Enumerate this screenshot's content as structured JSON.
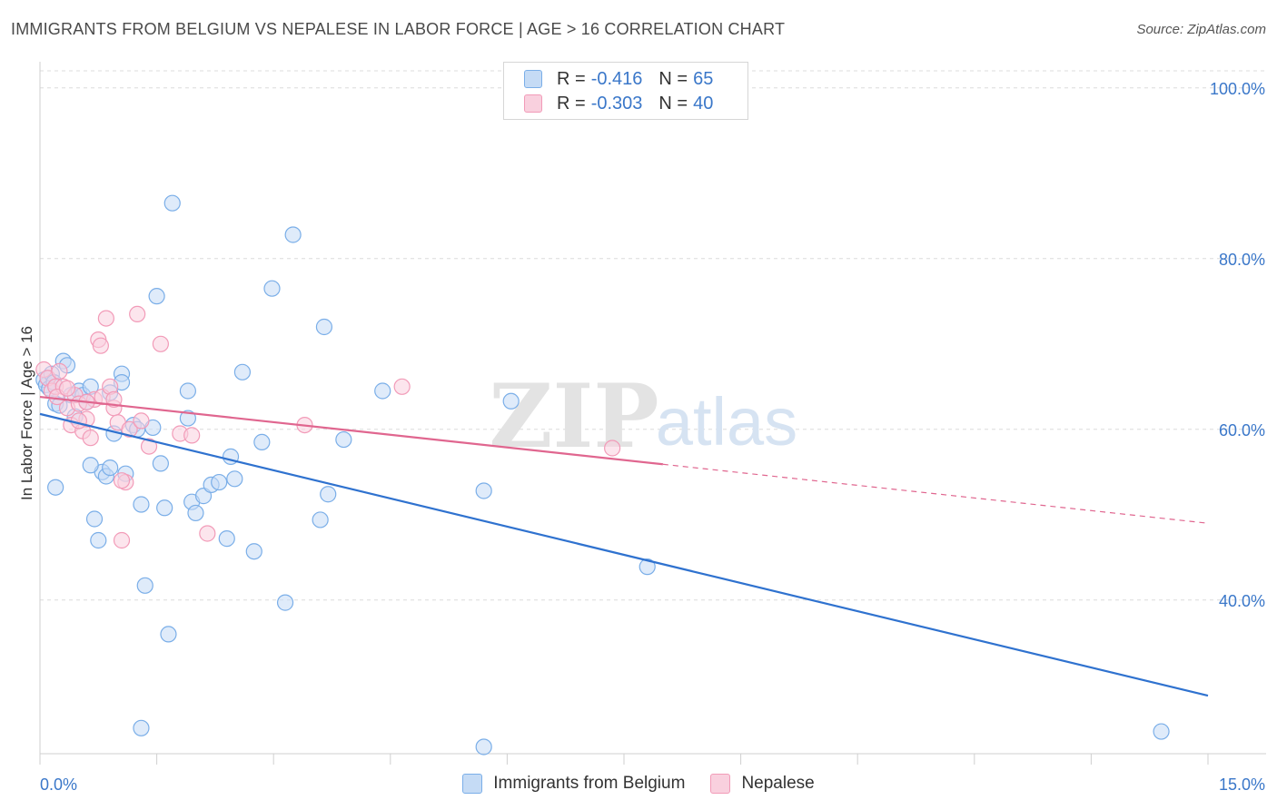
{
  "header": {
    "title": "IMMIGRANTS FROM BELGIUM VS NEPALESE IN LABOR FORCE | AGE > 16 CORRELATION CHART",
    "source": "Source: ZipAtlas.com"
  },
  "legend": {
    "rows": [
      {
        "r_label": "R =",
        "r_value": "-0.416",
        "n_label": "N =",
        "n_value": "65"
      },
      {
        "r_label": "R =",
        "r_value": "-0.303",
        "n_label": "N =",
        "n_value": "40"
      }
    ]
  },
  "watermark": {
    "zip": "ZIP",
    "atlas": "atlas"
  },
  "chart_data": {
    "type": "scatter",
    "title": "IMMIGRANTS FROM BELGIUM VS NEPALESE IN LABOR FORCE | AGE > 16 CORRELATION CHART",
    "xlabel": "",
    "ylabel": "In Labor Force | Age > 16",
    "xlim": [
      0,
      15
    ],
    "ylim": [
      22,
      102
    ],
    "x_tick_labels": [
      "0.0%",
      "15.0%"
    ],
    "y_ticks": [
      40,
      60,
      80,
      100
    ],
    "y_tick_labels": [
      "40.0%",
      "60.0%",
      "80.0%",
      "100.0%"
    ],
    "grid": true,
    "legend_position": "top-center",
    "series": [
      {
        "name": "Immigrants from Belgium",
        "color": "#7aaee8",
        "line_color": "#2f72cf",
        "trend": {
          "x": [
            0,
            15
          ],
          "y": [
            61.8,
            28.8
          ],
          "dashed_from": null
        },
        "points": [
          [
            0.05,
            65.8
          ],
          [
            0.08,
            65.2
          ],
          [
            0.1,
            66.0
          ],
          [
            0.12,
            64.8
          ],
          [
            0.15,
            66.5
          ],
          [
            0.18,
            65.5
          ],
          [
            0.2,
            63.0
          ],
          [
            0.25,
            62.8
          ],
          [
            0.3,
            68.0
          ],
          [
            0.35,
            67.5
          ],
          [
            0.4,
            64.0
          ],
          [
            0.45,
            61.5
          ],
          [
            0.5,
            64.5
          ],
          [
            0.55,
            64.0
          ],
          [
            0.6,
            63.2
          ],
          [
            0.65,
            65.0
          ],
          [
            0.7,
            49.5
          ],
          [
            0.75,
            47.0
          ],
          [
            0.8,
            55.0
          ],
          [
            0.85,
            54.5
          ],
          [
            0.9,
            64.3
          ],
          [
            0.95,
            59.5
          ],
          [
            1.05,
            66.5
          ],
          [
            1.1,
            54.8
          ],
          [
            0.2,
            53.2
          ],
          [
            0.65,
            55.8
          ],
          [
            0.9,
            55.5
          ],
          [
            1.2,
            60.5
          ],
          [
            1.25,
            60.0
          ],
          [
            1.3,
            51.2
          ],
          [
            1.45,
            60.2
          ],
          [
            1.5,
            75.6
          ],
          [
            1.55,
            56.0
          ],
          [
            1.6,
            50.8
          ],
          [
            1.65,
            36.0
          ],
          [
            1.7,
            86.5
          ],
          [
            1.9,
            64.5
          ],
          [
            1.95,
            51.5
          ],
          [
            2.0,
            50.2
          ],
          [
            2.1,
            52.2
          ],
          [
            2.2,
            53.5
          ],
          [
            2.3,
            53.8
          ],
          [
            2.4,
            47.2
          ],
          [
            2.45,
            56.8
          ],
          [
            2.5,
            54.2
          ],
          [
            2.6,
            66.7
          ],
          [
            2.75,
            45.7
          ],
          [
            2.85,
            58.5
          ],
          [
            2.98,
            76.5
          ],
          [
            3.15,
            39.7
          ],
          [
            3.25,
            82.8
          ],
          [
            3.6,
            49.4
          ],
          [
            3.65,
            72.0
          ],
          [
            3.7,
            52.4
          ],
          [
            3.9,
            58.8
          ],
          [
            4.4,
            64.5
          ],
          [
            5.7,
            52.8
          ],
          [
            6.05,
            63.3
          ],
          [
            7.8,
            43.9
          ],
          [
            1.3,
            25.0
          ],
          [
            1.35,
            41.7
          ],
          [
            1.9,
            61.3
          ],
          [
            5.7,
            22.8
          ],
          [
            14.4,
            24.6
          ],
          [
            1.05,
            65.5
          ]
        ]
      },
      {
        "name": "Nepalese",
        "color": "#f29bb8",
        "line_color": "#e0668f",
        "trend": {
          "x": [
            0,
            15
          ],
          "y": [
            63.8,
            49.0
          ],
          "dashed_from": 8.0
        },
        "points": [
          [
            0.05,
            67.0
          ],
          [
            0.1,
            66.0
          ],
          [
            0.15,
            64.5
          ],
          [
            0.2,
            65.0
          ],
          [
            0.25,
            66.8
          ],
          [
            0.3,
            65.0
          ],
          [
            0.35,
            62.5
          ],
          [
            0.4,
            60.5
          ],
          [
            0.45,
            64.0
          ],
          [
            0.5,
            63.0
          ],
          [
            0.55,
            59.8
          ],
          [
            0.6,
            61.2
          ],
          [
            0.65,
            59.0
          ],
          [
            0.7,
            63.5
          ],
          [
            0.75,
            70.5
          ],
          [
            0.8,
            63.8
          ],
          [
            0.85,
            73.0
          ],
          [
            0.9,
            65.0
          ],
          [
            0.95,
            62.5
          ],
          [
            1.0,
            60.8
          ],
          [
            1.05,
            47.0
          ],
          [
            1.1,
            53.8
          ],
          [
            1.15,
            60.0
          ],
          [
            1.25,
            73.5
          ],
          [
            1.3,
            61.0
          ],
          [
            1.4,
            58.0
          ],
          [
            1.55,
            70.0
          ],
          [
            1.8,
            59.5
          ],
          [
            1.95,
            59.3
          ],
          [
            2.15,
            47.8
          ],
          [
            3.4,
            60.5
          ],
          [
            4.65,
            65.0
          ],
          [
            7.35,
            57.8
          ],
          [
            0.6,
            63.2
          ],
          [
            0.22,
            63.8
          ],
          [
            0.5,
            61.0
          ],
          [
            0.78,
            69.8
          ],
          [
            1.05,
            54.0
          ],
          [
            0.95,
            63.5
          ],
          [
            0.35,
            64.8
          ]
        ]
      }
    ]
  },
  "bottom_legend": {
    "items": [
      {
        "label": "Immigrants from Belgium"
      },
      {
        "label": "Nepalese"
      }
    ]
  },
  "colors": {
    "blue_fill": "#c5dbf5",
    "blue_stroke": "#7aaee8",
    "pink_fill": "#f9d0de",
    "pink_stroke": "#f29bb8",
    "tick_label": "#3a77c9",
    "grid": "#dcdcdc"
  }
}
